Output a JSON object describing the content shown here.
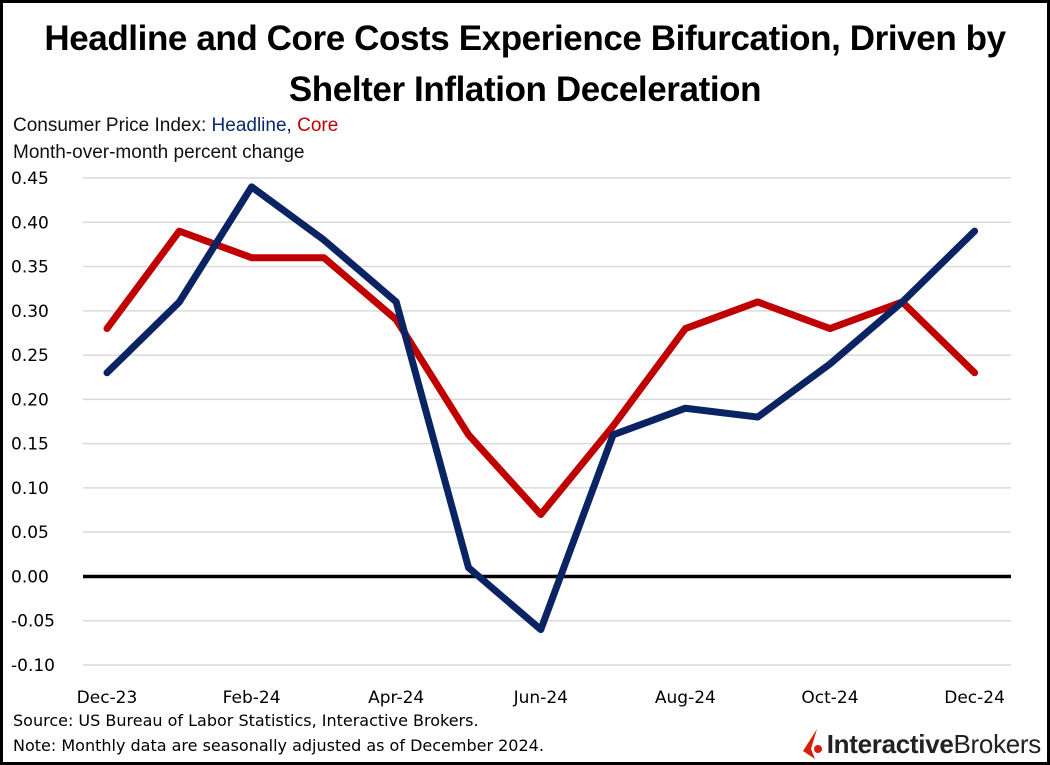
{
  "title_line1": "Headline and Core Costs Experience Bifurcation, Driven by",
  "title_line2": "Shelter Inflation Deceleration",
  "subtitle_prefix": "Consumer Price Index: ",
  "subtitle_headline": "Headline",
  "subtitle_sep": ", ",
  "subtitle_core": "Core",
  "subtitle2": "Month-over-month percent change",
  "source": "Source: US Bureau of Labor Statistics, Interactive Brokers.",
  "note": "Note: Monthly data are seasonally adjusted as of December 2024.",
  "logo": {
    "bold": "Interactive",
    "regular": "Brokers"
  },
  "colors": {
    "headline": "#0a2463",
    "core": "#c00000",
    "zero_line": "#000000",
    "grid": "#d9d9d9"
  },
  "chart_data": {
    "type": "line",
    "title": "Headline and Core Costs Experience Bifurcation, Driven by Shelter Inflation Deceleration",
    "xlabel": "",
    "ylabel": "Month-over-month percent change",
    "x": [
      "Dec-23",
      "Jan-24",
      "Feb-24",
      "Mar-24",
      "Apr-24",
      "May-24",
      "Jun-24",
      "Jul-24",
      "Aug-24",
      "Sep-24",
      "Oct-24",
      "Nov-24",
      "Dec-24"
    ],
    "x_tick_labels": [
      "Dec-23",
      "Feb-24",
      "Apr-24",
      "Jun-24",
      "Aug-24",
      "Oct-24",
      "Dec-24"
    ],
    "ylim": [
      -0.1,
      0.45
    ],
    "y_ticks": [
      "0.45",
      "0.40",
      "0.35",
      "0.30",
      "0.25",
      "0.20",
      "0.15",
      "0.10",
      "0.05",
      "0.00",
      "-0.05",
      "-0.10"
    ],
    "grid": true,
    "legend": "inline-subtitle",
    "series": [
      {
        "name": "Headline",
        "color": "#0a2463",
        "values": [
          0.23,
          0.31,
          0.44,
          0.38,
          0.31,
          0.01,
          -0.06,
          0.16,
          0.19,
          0.18,
          0.24,
          0.31,
          0.39
        ]
      },
      {
        "name": "Core",
        "color": "#c00000",
        "values": [
          0.28,
          0.39,
          0.36,
          0.36,
          0.29,
          0.16,
          0.07,
          0.17,
          0.28,
          0.31,
          0.28,
          0.31,
          0.23
        ]
      }
    ]
  }
}
